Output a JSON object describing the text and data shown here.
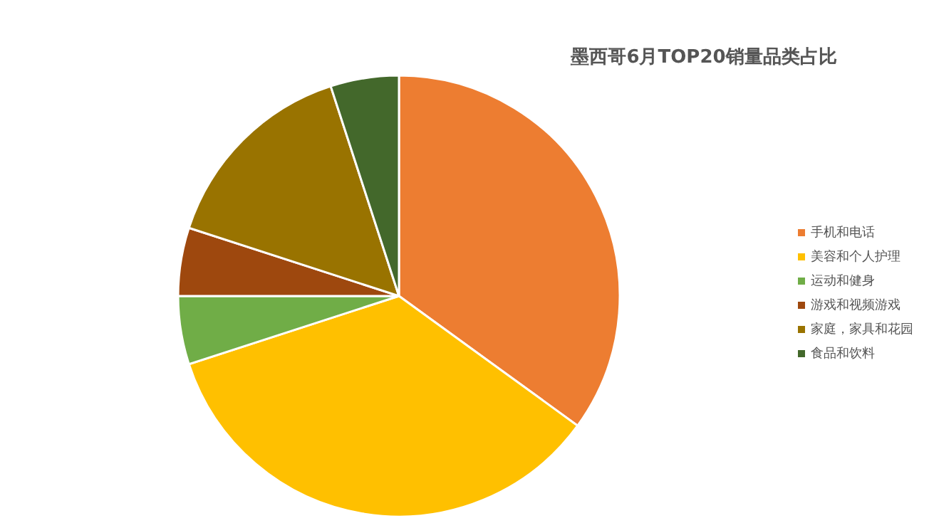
{
  "chart_data": {
    "type": "pie",
    "title": "墨西哥6月TOP20销量品类占比",
    "categories": [
      "手机和电话",
      "美容和个人护理",
      "运动和健身",
      "游戏和视频游戏",
      "家庭，家具和花园",
      "食品和饮料"
    ],
    "values": [
      35,
      35,
      5,
      5,
      15,
      5
    ],
    "colors": [
      "#ed7d31",
      "#ffc000",
      "#70ad47",
      "#9e480e",
      "#997300",
      "#43682b"
    ],
    "legend": "right"
  }
}
